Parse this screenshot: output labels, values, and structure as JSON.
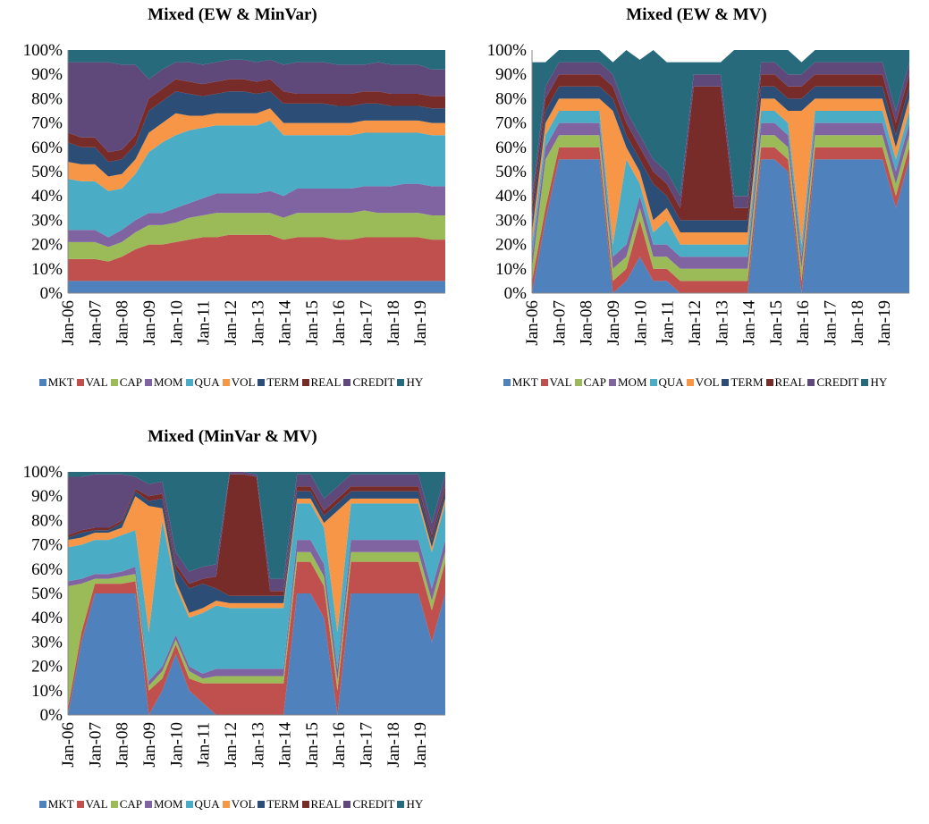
{
  "colors": {
    "MKT": "#4F81BD",
    "VAL": "#C0504D",
    "CAP": "#9BBB59",
    "MOM": "#8064A2",
    "QUA": "#4BACC6",
    "VOL": "#F79646",
    "TERM": "#2C4D75",
    "REAL": "#772C2A",
    "CREDIT": "#5F497A",
    "HY": "#276A7C"
  },
  "chart_data": [
    {
      "type": "area",
      "stacked": true,
      "title": "Mixed (EW & MinVar)",
      "x_tick_labels": [
        "Jan-06",
        "Jan-07",
        "Jan-08",
        "Jan-09",
        "Jan-10",
        "Jan-11",
        "Jan-12",
        "Jan-13",
        "Jan-14",
        "Jan-15",
        "Jan-16",
        "Jan-17",
        "Jan-18",
        "Jan-19"
      ],
      "y_tick_labels": [
        "0%",
        "10%",
        "20%",
        "30%",
        "40%",
        "50%",
        "60%",
        "70%",
        "80%",
        "90%",
        "100%"
      ],
      "ylim": [
        0,
        100
      ],
      "x": [
        "Jan-06",
        "Jul-06",
        "Jan-07",
        "Jul-07",
        "Jan-08",
        "Jul-08",
        "Jan-09",
        "Jul-09",
        "Jan-10",
        "Jul-10",
        "Jan-11",
        "Jul-11",
        "Jan-12",
        "Jul-12",
        "Jan-13",
        "Jul-13",
        "Jan-14",
        "Jul-14",
        "Jan-15",
        "Jul-15",
        "Jan-16",
        "Jul-16",
        "Jan-17",
        "Jul-17",
        "Jan-18",
        "Jul-18",
        "Jan-19",
        "Jul-19",
        "Dec-19"
      ],
      "series": [
        {
          "name": "MKT",
          "values": [
            5,
            5,
            5,
            5,
            5,
            5,
            5,
            5,
            5,
            5,
            5,
            5,
            5,
            5,
            5,
            5,
            5,
            5,
            5,
            5,
            5,
            5,
            5,
            5,
            5,
            5,
            5,
            5,
            5
          ]
        },
        {
          "name": "VAL",
          "values": [
            9,
            9,
            9,
            8,
            10,
            13,
            15,
            15,
            16,
            17,
            18,
            18,
            19,
            19,
            19,
            19,
            17,
            18,
            18,
            18,
            17,
            17,
            18,
            18,
            18,
            18,
            18,
            17,
            17
          ]
        },
        {
          "name": "CAP",
          "values": [
            7,
            7,
            7,
            6,
            6,
            7,
            8,
            8,
            8,
            9,
            9,
            10,
            9,
            9,
            9,
            9,
            9,
            10,
            10,
            10,
            11,
            11,
            11,
            10,
            10,
            10,
            10,
            10,
            10
          ]
        },
        {
          "name": "MOM",
          "values": [
            5,
            5,
            5,
            4,
            5,
            5,
            5,
            5,
            6,
            6,
            7,
            8,
            8,
            8,
            8,
            9,
            9,
            10,
            10,
            10,
            10,
            10,
            10,
            11,
            11,
            12,
            12,
            12,
            12
          ]
        },
        {
          "name": "QUA",
          "values": [
            21,
            20,
            20,
            19,
            17,
            19,
            25,
            29,
            30,
            30,
            29,
            28,
            28,
            28,
            28,
            29,
            25,
            22,
            22,
            22,
            22,
            22,
            22,
            22,
            22,
            21,
            21,
            21,
            21
          ]
        },
        {
          "name": "VOL",
          "values": [
            7,
            7,
            7,
            6,
            6,
            6,
            8,
            8,
            9,
            6,
            5,
            5,
            5,
            5,
            5,
            5,
            5,
            5,
            5,
            5,
            5,
            5,
            5,
            5,
            5,
            5,
            5,
            5,
            5
          ]
        },
        {
          "name": "TERM",
          "values": [
            8,
            7,
            7,
            6,
            6,
            6,
            9,
            9,
            9,
            9,
            8,
            8,
            9,
            9,
            8,
            7,
            8,
            8,
            8,
            8,
            7,
            7,
            7,
            7,
            6,
            6,
            6,
            6,
            6
          ]
        },
        {
          "name": "REAL",
          "values": [
            4,
            4,
            4,
            4,
            4,
            4,
            5,
            5,
            5,
            5,
            5,
            5,
            5,
            5,
            5,
            5,
            5,
            4,
            4,
            4,
            5,
            5,
            5,
            5,
            5,
            5,
            5,
            5,
            5
          ]
        },
        {
          "name": "CREDIT",
          "values": [
            29,
            31,
            31,
            37,
            35,
            29,
            8,
            8,
            7,
            8,
            8,
            8,
            8,
            8,
            8,
            8,
            11,
            13,
            13,
            13,
            12,
            12,
            11,
            12,
            12,
            12,
            12,
            11,
            11
          ]
        },
        {
          "name": "HY",
          "values": [
            5,
            5,
            5,
            5,
            6,
            6,
            12,
            8,
            5,
            5,
            6,
            5,
            4,
            4,
            5,
            4,
            6,
            5,
            5,
            5,
            6,
            6,
            6,
            5,
            6,
            6,
            6,
            8,
            8
          ]
        }
      ]
    },
    {
      "type": "area",
      "stacked": true,
      "title": "Mixed (EW & MV)",
      "x_tick_labels": [
        "Jan-06",
        "Jan-07",
        "Jan-08",
        "Jan-09",
        "Jan-10",
        "Jan-11",
        "Jan-12",
        "Jan-13",
        "Jan-14",
        "Jan-15",
        "Jan-16",
        "Jan-17",
        "Jan-18",
        "Jan-19"
      ],
      "y_tick_labels": [
        "0%",
        "10%",
        "20%",
        "30%",
        "40%",
        "50%",
        "60%",
        "70%",
        "80%",
        "90%",
        "100%"
      ],
      "ylim": [
        0,
        100
      ],
      "x": [
        "Jan-06",
        "Jul-06",
        "Jan-07",
        "Jul-07",
        "Jan-08",
        "Jul-08",
        "Jan-09",
        "Jul-09",
        "Jan-10",
        "Jul-10",
        "Jan-11",
        "Jul-11",
        "Jan-12",
        "Jul-12",
        "Jan-13",
        "Jul-13",
        "Jan-14",
        "Jul-14",
        "Jan-15",
        "Jul-15",
        "Jan-16",
        "Jul-16",
        "Jan-17",
        "Jul-17",
        "Jan-18",
        "Jul-18",
        "Jan-19",
        "Jul-19",
        "Dec-19"
      ],
      "series": [
        {
          "name": "MKT",
          "values": [
            0,
            30,
            55,
            55,
            55,
            55,
            0,
            5,
            15,
            5,
            5,
            0,
            0,
            0,
            0,
            0,
            0,
            55,
            55,
            50,
            0,
            55,
            55,
            55,
            55,
            55,
            55,
            35,
            55
          ]
        },
        {
          "name": "VAL",
          "values": [
            5,
            5,
            5,
            5,
            5,
            5,
            5,
            5,
            15,
            5,
            5,
            5,
            5,
            5,
            5,
            5,
            5,
            5,
            5,
            5,
            5,
            5,
            5,
            5,
            5,
            5,
            5,
            5,
            5
          ]
        },
        {
          "name": "CAP",
          "values": [
            5,
            20,
            5,
            5,
            5,
            5,
            5,
            5,
            5,
            5,
            5,
            5,
            5,
            5,
            5,
            5,
            5,
            5,
            5,
            5,
            5,
            5,
            5,
            5,
            5,
            5,
            5,
            5,
            5
          ]
        },
        {
          "name": "MOM",
          "values": [
            5,
            5,
            5,
            5,
            5,
            5,
            5,
            5,
            5,
            5,
            5,
            5,
            5,
            5,
            5,
            5,
            5,
            5,
            5,
            5,
            5,
            5,
            5,
            5,
            5,
            5,
            5,
            5,
            5
          ]
        },
        {
          "name": "QUA",
          "values": [
            5,
            5,
            5,
            5,
            5,
            5,
            5,
            35,
            5,
            5,
            10,
            5,
            5,
            5,
            5,
            5,
            5,
            5,
            5,
            5,
            5,
            5,
            5,
            5,
            5,
            5,
            5,
            5,
            5
          ]
        },
        {
          "name": "VOL",
          "values": [
            5,
            5,
            5,
            5,
            5,
            5,
            55,
            5,
            5,
            5,
            5,
            5,
            5,
            5,
            5,
            5,
            5,
            5,
            5,
            5,
            55,
            5,
            5,
            5,
            5,
            5,
            5,
            5,
            5
          ]
        },
        {
          "name": "TERM",
          "values": [
            5,
            5,
            5,
            5,
            5,
            5,
            5,
            5,
            5,
            15,
            5,
            5,
            5,
            5,
            5,
            5,
            5,
            5,
            5,
            5,
            5,
            5,
            5,
            5,
            5,
            5,
            5,
            5,
            5
          ]
        },
        {
          "name": "REAL",
          "values": [
            5,
            5,
            5,
            5,
            5,
            5,
            5,
            5,
            5,
            5,
            5,
            5,
            55,
            55,
            55,
            5,
            5,
            5,
            5,
            5,
            5,
            5,
            5,
            5,
            5,
            5,
            5,
            5,
            5
          ]
        },
        {
          "name": "CREDIT",
          "values": [
            5,
            5,
            5,
            5,
            5,
            5,
            5,
            5,
            5,
            5,
            5,
            5,
            5,
            5,
            5,
            5,
            5,
            5,
            5,
            5,
            5,
            5,
            5,
            5,
            5,
            5,
            5,
            5,
            5
          ]
        },
        {
          "name": "HY",
          "values": [
            55,
            10,
            5,
            5,
            5,
            5,
            5,
            25,
            31,
            45,
            45,
            55,
            5,
            5,
            5,
            60,
            60,
            5,
            5,
            10,
            5,
            5,
            5,
            5,
            5,
            5,
            5,
            25,
            5
          ]
        }
      ]
    },
    {
      "type": "area",
      "stacked": true,
      "title": "Mixed (MinVar & MV)",
      "x_tick_labels": [
        "Jan-06",
        "Jan-07",
        "Jan-08",
        "Jan-09",
        "Jan-10",
        "Jan-11",
        "Jan-12",
        "Jan-13",
        "Jan-14",
        "Jan-15",
        "Jan-16",
        "Jan-17",
        "Jan-18",
        "Jan-19"
      ],
      "y_tick_labels": [
        "0%",
        "10%",
        "20%",
        "30%",
        "40%",
        "50%",
        "60%",
        "70%",
        "80%",
        "90%",
        "100%"
      ],
      "ylim": [
        0,
        100
      ],
      "x": [
        "Jan-06",
        "Jul-06",
        "Jan-07",
        "Jul-07",
        "Jan-08",
        "Jul-08",
        "Jan-09",
        "Jul-09",
        "Jan-10",
        "Jul-10",
        "Jan-11",
        "Jul-11",
        "Jan-12",
        "Jul-12",
        "Jan-13",
        "Jul-13",
        "Jan-14",
        "Jul-14",
        "Jan-15",
        "Jul-15",
        "Jan-16",
        "Jul-16",
        "Jan-17",
        "Jul-17",
        "Jan-18",
        "Jul-18",
        "Jan-19",
        "Jul-19",
        "Dec-19"
      ],
      "series": [
        {
          "name": "MKT",
          "values": [
            0,
            30,
            50,
            50,
            50,
            50,
            0,
            10,
            25,
            10,
            5,
            0,
            0,
            0,
            0,
            0,
            0,
            50,
            50,
            40,
            0,
            50,
            50,
            50,
            50,
            50,
            50,
            30,
            50
          ]
        },
        {
          "name": "VAL",
          "values": [
            3,
            4,
            4,
            4,
            4,
            5,
            10,
            5,
            4,
            5,
            8,
            13,
            13,
            13,
            13,
            13,
            13,
            13,
            13,
            13,
            10,
            13,
            13,
            13,
            13,
            13,
            13,
            13,
            13
          ]
        },
        {
          "name": "CAP",
          "values": [
            50,
            20,
            2,
            2,
            3,
            3,
            2,
            3,
            2,
            3,
            2,
            3,
            3,
            3,
            3,
            3,
            3,
            4,
            4,
            4,
            4,
            4,
            4,
            4,
            4,
            4,
            4,
            4,
            4
          ]
        },
        {
          "name": "MOM",
          "values": [
            2,
            2,
            2,
            2,
            2,
            3,
            2,
            2,
            2,
            2,
            2,
            3,
            3,
            3,
            3,
            3,
            3,
            5,
            5,
            5,
            5,
            5,
            5,
            5,
            5,
            5,
            5,
            5,
            5
          ]
        },
        {
          "name": "QUA",
          "values": [
            14,
            14,
            14,
            14,
            15,
            15,
            20,
            60,
            20,
            20,
            25,
            26,
            25,
            25,
            25,
            25,
            25,
            15,
            15,
            15,
            15,
            15,
            15,
            15,
            15,
            15,
            15,
            15,
            15
          ]
        },
        {
          "name": "VOL",
          "values": [
            3,
            3,
            3,
            3,
            3,
            14,
            52,
            5,
            2,
            2,
            2,
            2,
            2,
            2,
            2,
            2,
            2,
            2,
            2,
            2,
            50,
            2,
            2,
            2,
            2,
            2,
            2,
            2,
            2
          ]
        },
        {
          "name": "TERM",
          "values": [
            1,
            2,
            1,
            1,
            2,
            2,
            2,
            4,
            5,
            10,
            10,
            5,
            3,
            3,
            3,
            3,
            3,
            3,
            3,
            3,
            3,
            3,
            3,
            3,
            3,
            3,
            3,
            3,
            3
          ]
        },
        {
          "name": "REAL",
          "values": [
            1,
            1,
            1,
            1,
            1,
            1,
            2,
            2,
            2,
            2,
            2,
            5,
            50,
            50,
            49,
            2,
            2,
            2,
            2,
            2,
            2,
            2,
            2,
            2,
            2,
            2,
            2,
            2,
            2
          ]
        },
        {
          "name": "CREDIT",
          "values": [
            24,
            22,
            22,
            22,
            19,
            5,
            5,
            5,
            5,
            5,
            5,
            5,
            1,
            1,
            1,
            5,
            5,
            5,
            5,
            5,
            5,
            5,
            5,
            5,
            5,
            5,
            5,
            5,
            5
          ]
        },
        {
          "name": "HY",
          "values": [
            2,
            2,
            1,
            1,
            1,
            2,
            5,
            4,
            33,
            41,
            39,
            38,
            0,
            0,
            1,
            44,
            44,
            1,
            1,
            11,
            6,
            1,
            1,
            1,
            1,
            1,
            1,
            21,
            1
          ]
        }
      ]
    }
  ]
}
